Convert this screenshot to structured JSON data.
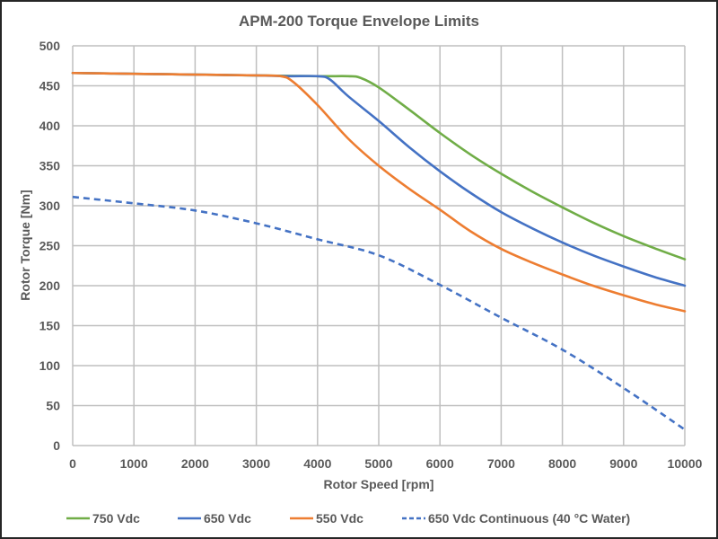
{
  "chart_data": {
    "type": "line",
    "title": "APM-200 Torque Envelope Limits",
    "xlabel": "Rotor Speed [rpm]",
    "ylabel": "Rotor Torque [Nm]",
    "xlim": [
      0,
      10000
    ],
    "ylim": [
      0,
      500
    ],
    "x_ticks": [
      0,
      1000,
      2000,
      3000,
      4000,
      5000,
      6000,
      7000,
      8000,
      9000,
      10000
    ],
    "y_ticks": [
      0,
      50,
      100,
      150,
      200,
      250,
      300,
      350,
      400,
      450,
      500
    ],
    "grid": true,
    "legend_position": "bottom",
    "series": [
      {
        "name": "750 Vdc",
        "color": "#70AD47",
        "dash": "solid",
        "points": [
          [
            0,
            466
          ],
          [
            1000,
            465
          ],
          [
            2000,
            464
          ],
          [
            3000,
            463
          ],
          [
            4000,
            462
          ],
          [
            4500,
            462
          ],
          [
            4700,
            460
          ],
          [
            5000,
            448
          ],
          [
            5500,
            420
          ],
          [
            6000,
            391
          ],
          [
            6500,
            364
          ],
          [
            7000,
            340
          ],
          [
            7500,
            318
          ],
          [
            8000,
            298
          ],
          [
            8500,
            279
          ],
          [
            9000,
            262
          ],
          [
            9500,
            247
          ],
          [
            10000,
            233
          ]
        ]
      },
      {
        "name": "650 Vdc",
        "color": "#4472C4",
        "dash": "solid",
        "points": [
          [
            0,
            466
          ],
          [
            1000,
            465
          ],
          [
            2000,
            464
          ],
          [
            3000,
            463
          ],
          [
            3500,
            462
          ],
          [
            4000,
            462
          ],
          [
            4200,
            458
          ],
          [
            4500,
            437
          ],
          [
            5000,
            406
          ],
          [
            5500,
            373
          ],
          [
            6000,
            343
          ],
          [
            6500,
            316
          ],
          [
            7000,
            292
          ],
          [
            7500,
            272
          ],
          [
            8000,
            254
          ],
          [
            8500,
            238
          ],
          [
            9000,
            224
          ],
          [
            9500,
            211
          ],
          [
            10000,
            200
          ]
        ]
      },
      {
        "name": "550 Vdc",
        "color": "#ED7D31",
        "dash": "solid",
        "points": [
          [
            0,
            466
          ],
          [
            1000,
            465
          ],
          [
            2000,
            464
          ],
          [
            3000,
            463
          ],
          [
            3400,
            462
          ],
          [
            3600,
            455
          ],
          [
            4000,
            426
          ],
          [
            4500,
            384
          ],
          [
            5000,
            350
          ],
          [
            5500,
            321
          ],
          [
            6000,
            295
          ],
          [
            6500,
            268
          ],
          [
            7000,
            246
          ],
          [
            7500,
            229
          ],
          [
            8000,
            214
          ],
          [
            8500,
            200
          ],
          [
            9000,
            188
          ],
          [
            9500,
            177
          ],
          [
            10000,
            168
          ]
        ]
      },
      {
        "name": "650 Vdc Continuous (40 °C Water)",
        "color": "#4472C4",
        "dash": "dashed",
        "points": [
          [
            0,
            311
          ],
          [
            1000,
            303
          ],
          [
            2000,
            294
          ],
          [
            3000,
            278
          ],
          [
            4000,
            258
          ],
          [
            5000,
            238
          ],
          [
            6000,
            201
          ],
          [
            7000,
            160
          ],
          [
            8000,
            120
          ],
          [
            9000,
            72
          ],
          [
            10000,
            20
          ]
        ]
      }
    ]
  }
}
